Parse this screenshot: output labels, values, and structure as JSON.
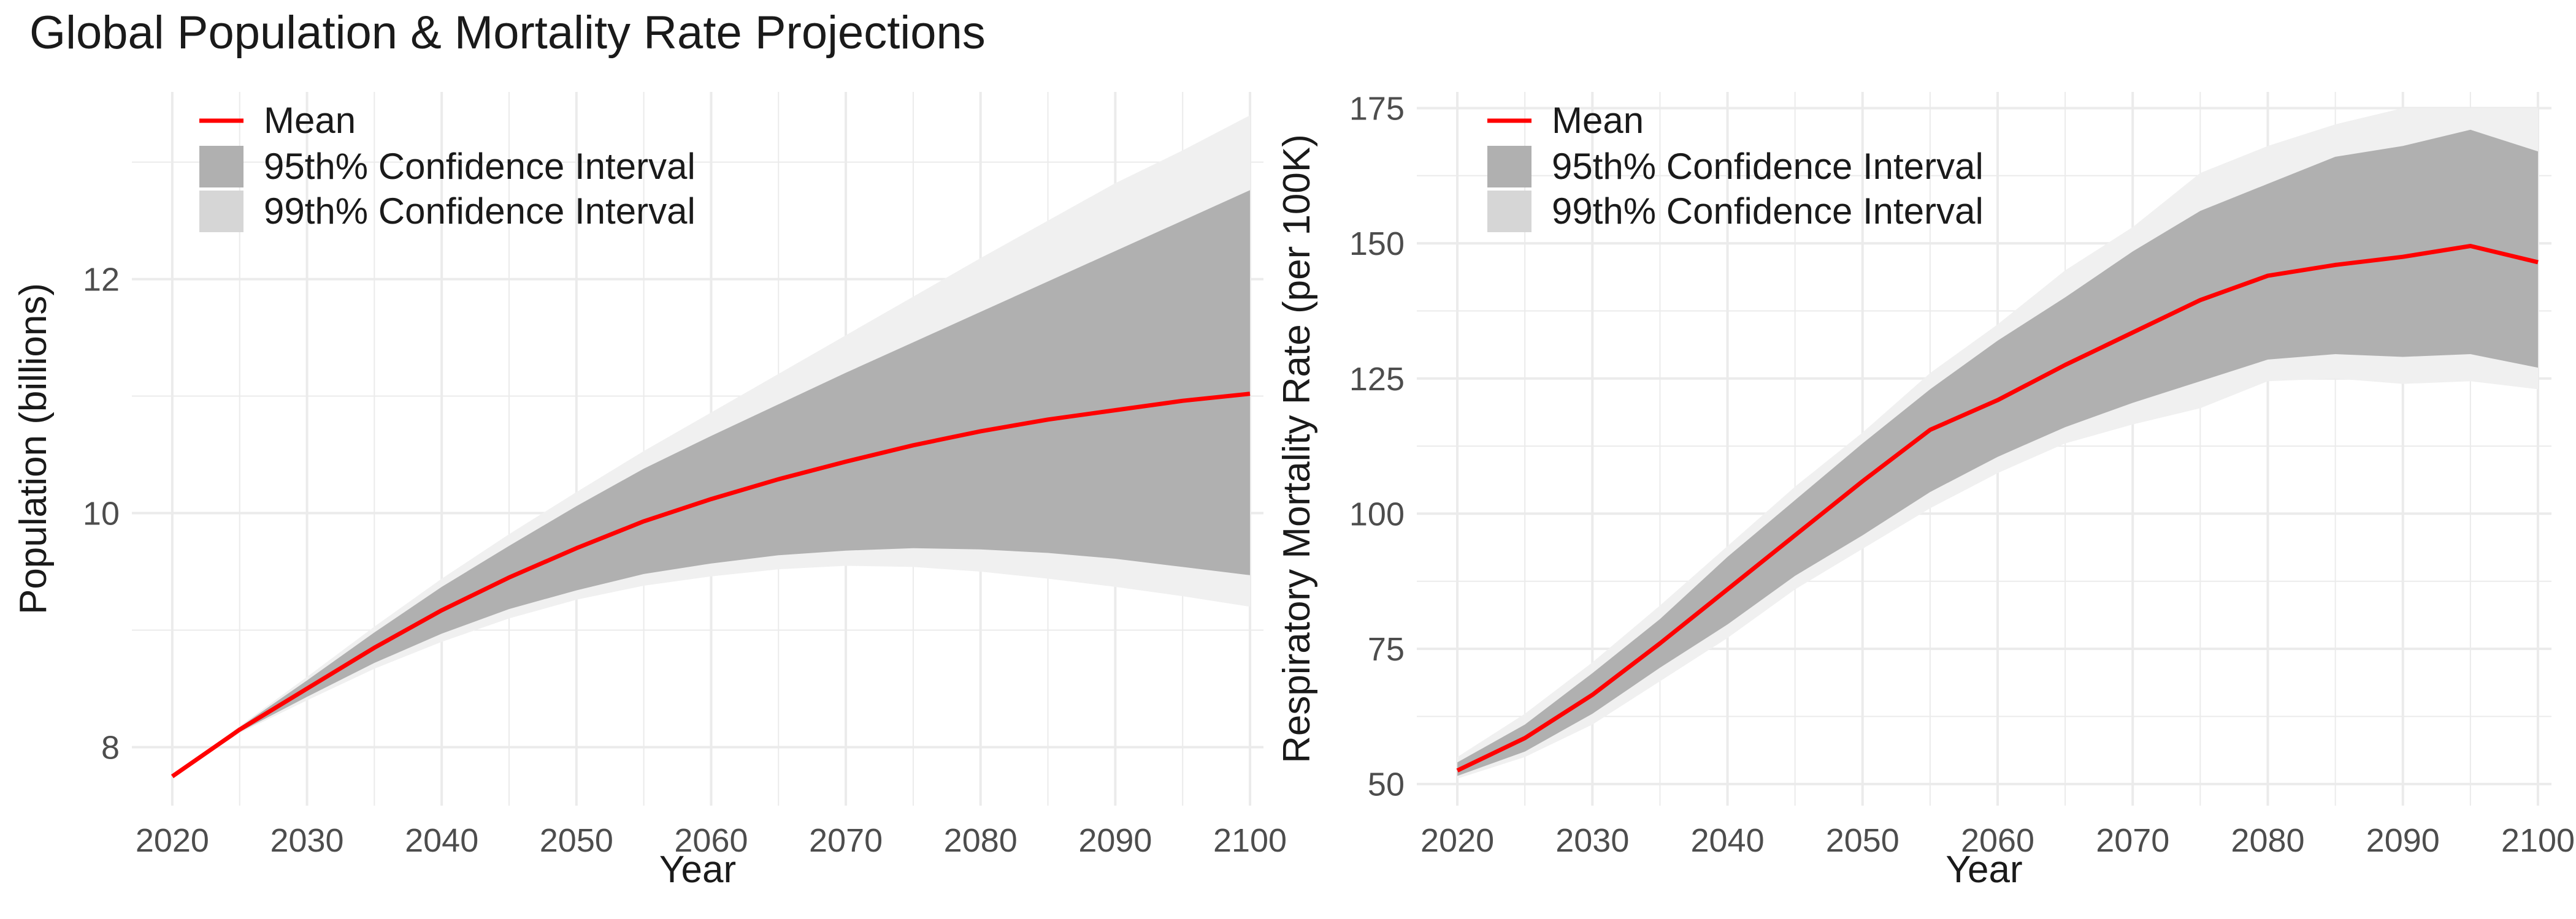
{
  "title": "Global Population & Mortality Rate Projections",
  "colors": {
    "mean": "#ff0000",
    "ci95": "#b0b0b0",
    "ci99": "#f0f0f0",
    "legend99": "#d6d6d6",
    "grid": "#ebebeb",
    "tick_text": "#4d4d4d",
    "axis_text": "#1a1a1a"
  },
  "chart_data": [
    {
      "type": "line",
      "xlabel": "Year",
      "ylabel": "Population (billions)",
      "xlim": [
        2017,
        2101
      ],
      "ylim": [
        7.5,
        13.6
      ],
      "xticks": [
        2020,
        2030,
        2040,
        2050,
        2060,
        2070,
        2080,
        2090,
        2100
      ],
      "yticks": [
        8,
        10,
        12
      ],
      "legend": {
        "position": "top-left",
        "entries": [
          "Mean",
          "95th% Confidence Interval",
          "99th% Confidence Interval"
        ]
      },
      "x": [
        2020,
        2025,
        2030,
        2035,
        2040,
        2045,
        2050,
        2055,
        2060,
        2065,
        2070,
        2075,
        2080,
        2085,
        2090,
        2095,
        2100
      ],
      "mean": [
        7.75,
        8.15,
        8.5,
        8.85,
        9.17,
        9.45,
        9.7,
        9.93,
        10.12,
        10.29,
        10.44,
        10.58,
        10.7,
        10.8,
        10.88,
        10.96,
        11.02
      ],
      "ci95_lower": [
        7.75,
        8.13,
        8.43,
        8.72,
        8.97,
        9.18,
        9.34,
        9.48,
        9.57,
        9.64,
        9.68,
        9.7,
        9.69,
        9.66,
        9.61,
        9.54,
        9.47
      ],
      "ci95_upper": [
        7.75,
        8.17,
        8.57,
        8.98,
        9.37,
        9.72,
        10.06,
        10.38,
        10.66,
        10.93,
        11.2,
        11.46,
        11.72,
        11.98,
        12.24,
        12.5,
        12.76
      ],
      "ci99_lower": [
        7.75,
        8.12,
        8.4,
        8.67,
        8.9,
        9.1,
        9.26,
        9.38,
        9.46,
        9.52,
        9.55,
        9.54,
        9.5,
        9.44,
        9.37,
        9.29,
        9.2
      ],
      "ci99_upper": [
        7.75,
        8.18,
        8.6,
        9.03,
        9.44,
        9.82,
        10.18,
        10.53,
        10.86,
        11.19,
        11.52,
        11.85,
        12.18,
        12.5,
        12.82,
        13.1,
        13.4
      ]
    },
    {
      "type": "line",
      "xlabel": "Year",
      "ylabel": "Respiratory Mortality Rate (per 100K)",
      "xlim": [
        2017,
        2101
      ],
      "ylim": [
        46,
        178
      ],
      "xticks": [
        2020,
        2030,
        2040,
        2050,
        2060,
        2070,
        2080,
        2090,
        2100
      ],
      "yticks": [
        50,
        75,
        100,
        125,
        150,
        175
      ],
      "legend": {
        "position": "top-left",
        "entries": [
          "Mean",
          "95th% Confidence Interval",
          "99th% Confidence Interval"
        ]
      },
      "x": [
        2020,
        2025,
        2030,
        2035,
        2040,
        2045,
        2050,
        2055,
        2060,
        2065,
        2070,
        2075,
        2080,
        2085,
        2090,
        2095,
        2100
      ],
      "mean": [
        52.5,
        58.5,
        66.5,
        76,
        86,
        96,
        106,
        115.5,
        121,
        127.5,
        133.5,
        139.5,
        144,
        146,
        147.5,
        149.5,
        146.5
      ],
      "ci95_lower": [
        51.5,
        56,
        63,
        71.5,
        79.5,
        88.5,
        96,
        104,
        110.5,
        116,
        120.5,
        124.5,
        128.5,
        129.5,
        129,
        129.5,
        127
      ],
      "ci95_upper": [
        54,
        61,
        70.5,
        80.5,
        92,
        102.5,
        113,
        123,
        132,
        140,
        148.5,
        156,
        161,
        166,
        168,
        171,
        167
      ],
      "ci99_lower": [
        51,
        55,
        61,
        69,
        77,
        86,
        93.5,
        101,
        107.5,
        113,
        116.5,
        119.5,
        124.5,
        125,
        124,
        124.5,
        123
      ],
      "ci99_upper": [
        55,
        63,
        72.5,
        83,
        94,
        105,
        115,
        126,
        135,
        145,
        153,
        163,
        168,
        172,
        175,
        175,
        175
      ]
    }
  ]
}
